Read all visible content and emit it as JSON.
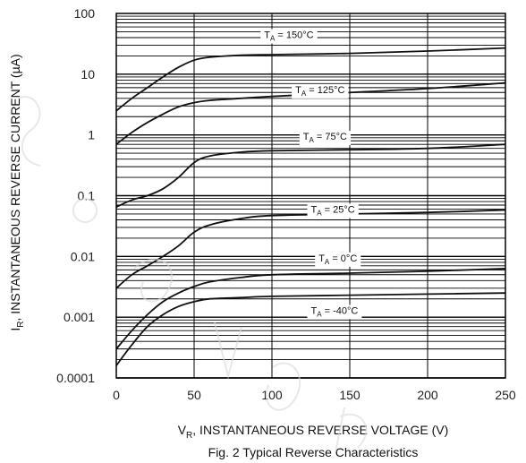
{
  "chart_data": {
    "type": "line",
    "title": "Fig. 2  Typical Reverse Characteristics",
    "xlabel_main": "V",
    "xlabel_sub": "R",
    "xlabel_rest": ", INSTANTANEOUS REVERSE VOLTAGE (V)",
    "ylabel_main": "I",
    "ylabel_sub": "R",
    "ylabel_rest": ", INSTANTANEOUS REVERSE CURRENT (µA)",
    "xlim": [
      0,
      250
    ],
    "ylim": [
      0.0001,
      100
    ],
    "y_scale": "log",
    "grid": true,
    "x_ticks": [
      0,
      50,
      100,
      150,
      200,
      250
    ],
    "x_tick_labels": [
      "0",
      "50",
      "100",
      "150",
      "200",
      "250"
    ],
    "y_ticks": [
      0.0001,
      0.001,
      0.01,
      0.1,
      1,
      10,
      100
    ],
    "y_tick_labels": [
      "0.0001",
      "0.001",
      "0.01",
      "0.1",
      "1",
      "10",
      "100"
    ],
    "series": [
      {
        "name": "T_A = 150°C",
        "label_main": "T",
        "label_sub": "A",
        "label_rest": " = 150°C",
        "label_at": [
          95,
          45
        ],
        "points": [
          [
            0,
            2.5
          ],
          [
            10,
            4
          ],
          [
            20,
            6
          ],
          [
            30,
            9
          ],
          [
            40,
            13
          ],
          [
            50,
            17
          ],
          [
            60,
            19
          ],
          [
            80,
            20.5
          ],
          [
            100,
            21
          ],
          [
            150,
            22
          ],
          [
            200,
            24
          ],
          [
            250,
            27
          ]
        ]
      },
      {
        "name": "T_A = 125°C",
        "label_main": "T",
        "label_sub": "A",
        "label_rest": " = 125°C",
        "label_at": [
          115,
          5.6
        ],
        "points": [
          [
            0,
            0.7
          ],
          [
            10,
            1.1
          ],
          [
            20,
            1.6
          ],
          [
            30,
            2.2
          ],
          [
            40,
            2.9
          ],
          [
            50,
            3.4
          ],
          [
            60,
            3.7
          ],
          [
            80,
            4.0
          ],
          [
            100,
            4.3
          ],
          [
            150,
            5.0
          ],
          [
            200,
            5.8
          ],
          [
            250,
            7.2
          ]
        ]
      },
      {
        "name": "T_A = 75°C",
        "label_main": "T",
        "label_sub": "A",
        "label_rest": " = 75°C",
        "label_at": [
          120,
          0.95
        ],
        "points": [
          [
            0,
            0.065
          ],
          [
            10,
            0.085
          ],
          [
            20,
            0.1
          ],
          [
            30,
            0.13
          ],
          [
            40,
            0.2
          ],
          [
            50,
            0.35
          ],
          [
            60,
            0.45
          ],
          [
            80,
            0.52
          ],
          [
            100,
            0.55
          ],
          [
            150,
            0.57
          ],
          [
            200,
            0.6
          ],
          [
            250,
            0.7
          ]
        ]
      },
      {
        "name": "T_A = 25°C",
        "label_main": "T",
        "label_sub": "A",
        "label_rest": " = 25°C",
        "label_at": [
          125,
          0.06
        ],
        "points": [
          [
            0,
            0.003
          ],
          [
            10,
            0.005
          ],
          [
            20,
            0.007
          ],
          [
            30,
            0.01
          ],
          [
            40,
            0.015
          ],
          [
            50,
            0.025
          ],
          [
            60,
            0.033
          ],
          [
            80,
            0.042
          ],
          [
            100,
            0.047
          ],
          [
            150,
            0.05
          ],
          [
            200,
            0.053
          ],
          [
            250,
            0.058
          ]
        ]
      },
      {
        "name": "T_A = 0°C",
        "label_main": "T",
        "label_sub": "A",
        "label_rest": " = 0°C",
        "label_at": [
          130,
          0.0095
        ],
        "points": [
          [
            0,
            0.0003
          ],
          [
            10,
            0.0006
          ],
          [
            20,
            0.0011
          ],
          [
            30,
            0.0018
          ],
          [
            40,
            0.0025
          ],
          [
            50,
            0.0032
          ],
          [
            60,
            0.0038
          ],
          [
            80,
            0.0045
          ],
          [
            100,
            0.005
          ],
          [
            150,
            0.0053
          ],
          [
            200,
            0.0057
          ],
          [
            250,
            0.0063
          ]
        ]
      },
      {
        "name": "T_A = -40°C",
        "label_main": "T",
        "label_sub": "A",
        "label_rest": " = -40°C",
        "label_at": [
          125,
          0.0013
        ],
        "points": [
          [
            0,
            0.00016
          ],
          [
            10,
            0.00035
          ],
          [
            20,
            0.0007
          ],
          [
            30,
            0.0011
          ],
          [
            40,
            0.0015
          ],
          [
            50,
            0.0018
          ],
          [
            60,
            0.002
          ],
          [
            80,
            0.0021
          ],
          [
            100,
            0.0022
          ],
          [
            150,
            0.0023
          ],
          [
            200,
            0.0024
          ],
          [
            250,
            0.0025
          ]
        ]
      }
    ]
  }
}
